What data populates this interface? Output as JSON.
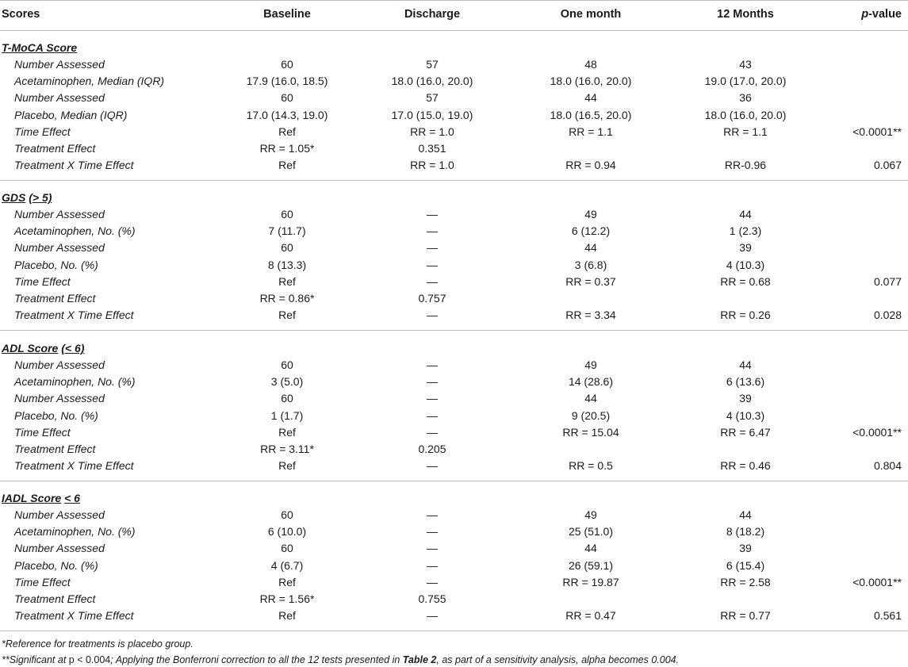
{
  "headers": {
    "scores": "Scores",
    "baseline": "Baseline",
    "discharge": "Discharge",
    "one_month": "One month",
    "twelve_months": "12 Months",
    "pvalue_italic": "p",
    "pvalue_rest": "-value"
  },
  "sections": [
    {
      "title_main": "T-MoCA Score",
      "title_extra": "",
      "rows": [
        {
          "label": "Number Assessed",
          "baseline": "60",
          "discharge": "57",
          "one_month": "48",
          "twelve": "43",
          "p": ""
        },
        {
          "label": "Acetaminophen, Median (IQR)",
          "baseline": "17.9 (16.0, 18.5)",
          "discharge": "18.0 (16.0, 20.0)",
          "one_month": "18.0 (16.0, 20.0)",
          "twelve": "19.0 (17.0, 20.0)",
          "p": ""
        },
        {
          "label": "Number Assessed",
          "baseline": "60",
          "discharge": "57",
          "one_month": "44",
          "twelve": "36",
          "p": ""
        },
        {
          "label": "Placebo, Median (IQR)",
          "baseline": "17.0 (14.3, 19.0)",
          "discharge": "17.0 (15.0, 19.0)",
          "one_month": "18.0 (16.5, 20.0)",
          "twelve": "18.0 (16.0, 20.0)",
          "p": ""
        },
        {
          "label": "Time Effect",
          "baseline": "Ref",
          "discharge": "RR = 1.0",
          "one_month": "RR = 1.1",
          "twelve": "RR = 1.1",
          "p": "<0.0001**"
        },
        {
          "label": "Treatment Effect",
          "baseline": "RR = 1.05*",
          "discharge": "0.351",
          "one_month": "",
          "twelve": "",
          "p": ""
        },
        {
          "label": "Treatment X Time Effect",
          "baseline": "Ref",
          "discharge": "RR = 1.0",
          "one_month": "RR = 0.94",
          "twelve": "RR-0.96",
          "p": "0.067"
        }
      ]
    },
    {
      "title_main": "GDS",
      "title_extra": "(> 5)",
      "rows": [
        {
          "label": "Number Assessed",
          "baseline": "60",
          "discharge": "—",
          "one_month": "49",
          "twelve": "44",
          "p": ""
        },
        {
          "label": "Acetaminophen, No. (%)",
          "baseline": "7 (11.7)",
          "discharge": "—",
          "one_month": "6 (12.2)",
          "twelve": "1 (2.3)",
          "p": ""
        },
        {
          "label": "Number Assessed",
          "baseline": "60",
          "discharge": "—",
          "one_month": "44",
          "twelve": "39",
          "p": ""
        },
        {
          "label": "Placebo, No. (%)",
          "baseline": "8 (13.3)",
          "discharge": "—",
          "one_month": "3 (6.8)",
          "twelve": "4 (10.3)",
          "p": ""
        },
        {
          "label": "Time Effect",
          "baseline": "Ref",
          "discharge": "—",
          "one_month": "RR = 0.37",
          "twelve": "RR = 0.68",
          "p": "0.077"
        },
        {
          "label": "Treatment Effect",
          "baseline": "RR = 0.86*",
          "discharge": "0.757",
          "one_month": "",
          "twelve": "",
          "p": ""
        },
        {
          "label": "Treatment X Time Effect",
          "baseline": "Ref",
          "discharge": "—",
          "one_month": "RR = 3.34",
          "twelve": "RR = 0.26",
          "p": "0.028"
        }
      ]
    },
    {
      "title_main": "ADL Score",
      "title_extra": "(< 6)",
      "rows": [
        {
          "label": "Number Assessed",
          "baseline": "60",
          "discharge": "—",
          "one_month": "49",
          "twelve": "44",
          "p": ""
        },
        {
          "label": "Acetaminophen, No. (%)",
          "baseline": "3 (5.0)",
          "discharge": "—",
          "one_month": "14 (28.6)",
          "twelve": "6 (13.6)",
          "p": ""
        },
        {
          "label": "Number Assessed",
          "baseline": "60",
          "discharge": "—",
          "one_month": "44",
          "twelve": "39",
          "p": ""
        },
        {
          "label": "Placebo, No. (%)",
          "baseline": "1 (1.7)",
          "discharge": "—",
          "one_month": "9 (20.5)",
          "twelve": "4 (10.3)",
          "p": ""
        },
        {
          "label": "Time Effect",
          "baseline": "Ref",
          "discharge": "—",
          "one_month": "RR = 15.04",
          "twelve": "RR = 6.47",
          "p": "<0.0001**"
        },
        {
          "label": "Treatment Effect",
          "baseline": "RR = 3.11*",
          "discharge": "0.205",
          "one_month": "",
          "twelve": "",
          "p": ""
        },
        {
          "label": "Treatment X Time Effect",
          "baseline": "Ref",
          "discharge": "—",
          "one_month": "RR = 0.5",
          "twelve": "RR = 0.46",
          "p": "0.804"
        }
      ]
    },
    {
      "title_main": "IADL Score",
      "title_extra": "< 6",
      "rows": [
        {
          "label": "Number Assessed",
          "baseline": "60",
          "discharge": "—",
          "one_month": "49",
          "twelve": "44",
          "p": ""
        },
        {
          "label": "Acetaminophen, No. (%)",
          "baseline": "6 (10.0)",
          "discharge": "—",
          "one_month": "25 (51.0)",
          "twelve": "8 (18.2)",
          "p": ""
        },
        {
          "label": "Number Assessed",
          "baseline": "60",
          "discharge": "—",
          "one_month": "44",
          "twelve": "39",
          "p": ""
        },
        {
          "label": "Placebo, No. (%)",
          "baseline": "4 (6.7)",
          "discharge": "—",
          "one_month": "26 (59.1)",
          "twelve": "6 (15.4)",
          "p": ""
        },
        {
          "label": "Time Effect",
          "baseline": "Ref",
          "discharge": "—",
          "one_month": "RR = 19.87",
          "twelve": "RR = 2.58",
          "p": "<0.0001**"
        },
        {
          "label": "Treatment Effect",
          "baseline": "RR = 1.56*",
          "discharge": "0.755",
          "one_month": "",
          "twelve": "",
          "p": ""
        },
        {
          "label": "Treatment X Time Effect",
          "baseline": "Ref",
          "discharge": "—",
          "one_month": "RR = 0.47",
          "twelve": "RR = 0.77",
          "p": "0.561"
        }
      ]
    }
  ],
  "footnotes": {
    "note1": "*Reference for treatments is placebo group.",
    "note2_a": "**Significant at ",
    "note2_b": "p < 0.004",
    "note2_c": "; Applying the Bonferroni correction to all the 12 tests presented in ",
    "note2_d": "Table 2",
    "note2_e": ", as part of a sensitivity analysis, alpha becomes 0.004."
  }
}
